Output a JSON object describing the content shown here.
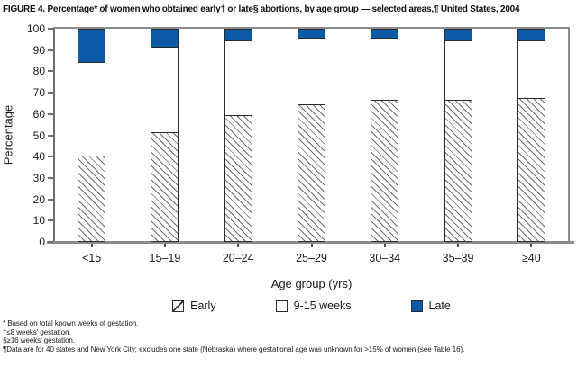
{
  "title": "FIGURE 4. Percentage* of women who obtained early† or late§ abortions, by age group — selected areas,¶ United States, 2004",
  "colors": {
    "late_fill": "#0b5aa5",
    "bar_border": "#2b2b2b",
    "axis_frame_gray": "#8c8c8c",
    "axis_left_gray": "#6f6f6f",
    "hatch_line_gray": "#6e6e6e",
    "text": "#1a1a1a"
  },
  "chart_data": {
    "type": "bar",
    "stacked": true,
    "title": "FIGURE 4. Percentage* of women who obtained early† or late§ abortions, by age group — selected areas,¶ United States, 2004",
    "categories": [
      "<15",
      "15–19",
      "20–24",
      "25–29",
      "30–34",
      "35–39",
      "≥40"
    ],
    "series": [
      {
        "name": "Early",
        "pattern": "diagonal-hatch",
        "values": [
          41,
          52,
          60,
          65,
          67,
          67,
          68
        ]
      },
      {
        "name": "9-15 weeks",
        "pattern": "solid-white",
        "values": [
          44,
          40,
          35,
          31,
          29,
          28,
          27
        ]
      },
      {
        "name": "Late",
        "pattern": "solid-blue",
        "color": "#0b5aa5",
        "values": [
          15,
          8,
          5,
          4,
          4,
          5,
          5
        ]
      }
    ],
    "xlabel": "Age group (yrs)",
    "ylabel": "Percentage",
    "ylim": [
      0,
      100
    ],
    "y_ticks": [
      0,
      10,
      20,
      30,
      40,
      50,
      60,
      70,
      80,
      90,
      100
    ],
    "grid": false,
    "legend_position": "bottom"
  },
  "footnotes": [
    "* Based on total known weeks of gestation.",
    "†≤8 weeks' gestation.",
    "§≥16 weeks' gestation.",
    "¶Data are for 40 states and New York City; excludes one state (Nebraska) where gestational age was unknown for >15% of women (see Table 16)."
  ]
}
